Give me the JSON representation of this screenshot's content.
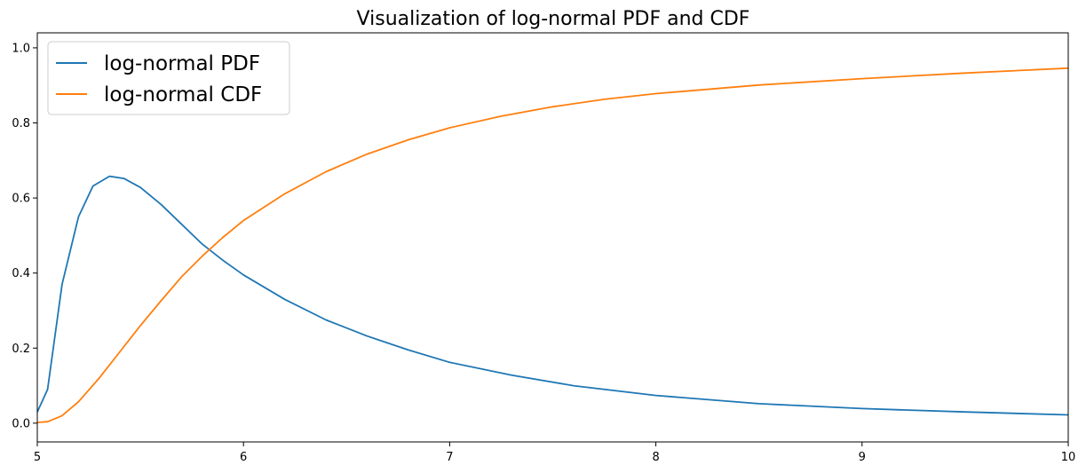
{
  "chart_data": {
    "type": "line",
    "title": "Visualization of log-normal PDF and CDF",
    "xlabel": "",
    "ylabel": "",
    "xlim": [
      5,
      10
    ],
    "ylim": [
      -0.05,
      1.04
    ],
    "x_ticks": [
      5,
      6,
      7,
      8,
      9,
      10
    ],
    "x_tick_labels": [
      "5",
      "6",
      "7",
      "8",
      "9",
      "10"
    ],
    "y_ticks": [
      0.0,
      0.2,
      0.4,
      0.6,
      0.8,
      1.0
    ],
    "y_tick_labels": [
      "0.0",
      "0.2",
      "0.4",
      "0.6",
      "0.8",
      "1.0"
    ],
    "grid": false,
    "legend_position": "top-left",
    "series": [
      {
        "name": "log-normal PDF",
        "color": "#1f77b4",
        "x": [
          5.0,
          5.05,
          5.12,
          5.2,
          5.27,
          5.35,
          5.42,
          5.5,
          5.6,
          5.7,
          5.8,
          5.9,
          6.0,
          6.2,
          6.4,
          6.6,
          6.8,
          7.0,
          7.3,
          7.6,
          8.0,
          8.5,
          9.0,
          9.5,
          10.0
        ],
        "values": [
          0.03,
          0.09,
          0.37,
          0.55,
          0.632,
          0.658,
          0.652,
          0.628,
          0.583,
          0.53,
          0.477,
          0.434,
          0.395,
          0.33,
          0.275,
          0.232,
          0.195,
          0.162,
          0.128,
          0.1,
          0.074,
          0.052,
          0.039,
          0.03,
          0.022
        ]
      },
      {
        "name": "log-normal CDF",
        "color": "#ff7f0e",
        "x": [
          5.0,
          5.05,
          5.12,
          5.2,
          5.3,
          5.4,
          5.5,
          5.6,
          5.7,
          5.8,
          5.9,
          6.0,
          6.2,
          6.4,
          6.6,
          6.8,
          7.0,
          7.25,
          7.5,
          7.75,
          8.0,
          8.5,
          9.0,
          9.5,
          10.0
        ],
        "values": [
          0.002,
          0.004,
          0.02,
          0.057,
          0.12,
          0.19,
          0.26,
          0.326,
          0.39,
          0.445,
          0.495,
          0.54,
          0.611,
          0.67,
          0.717,
          0.755,
          0.787,
          0.818,
          0.843,
          0.863,
          0.878,
          0.901,
          0.918,
          0.933,
          0.946
        ]
      }
    ]
  }
}
